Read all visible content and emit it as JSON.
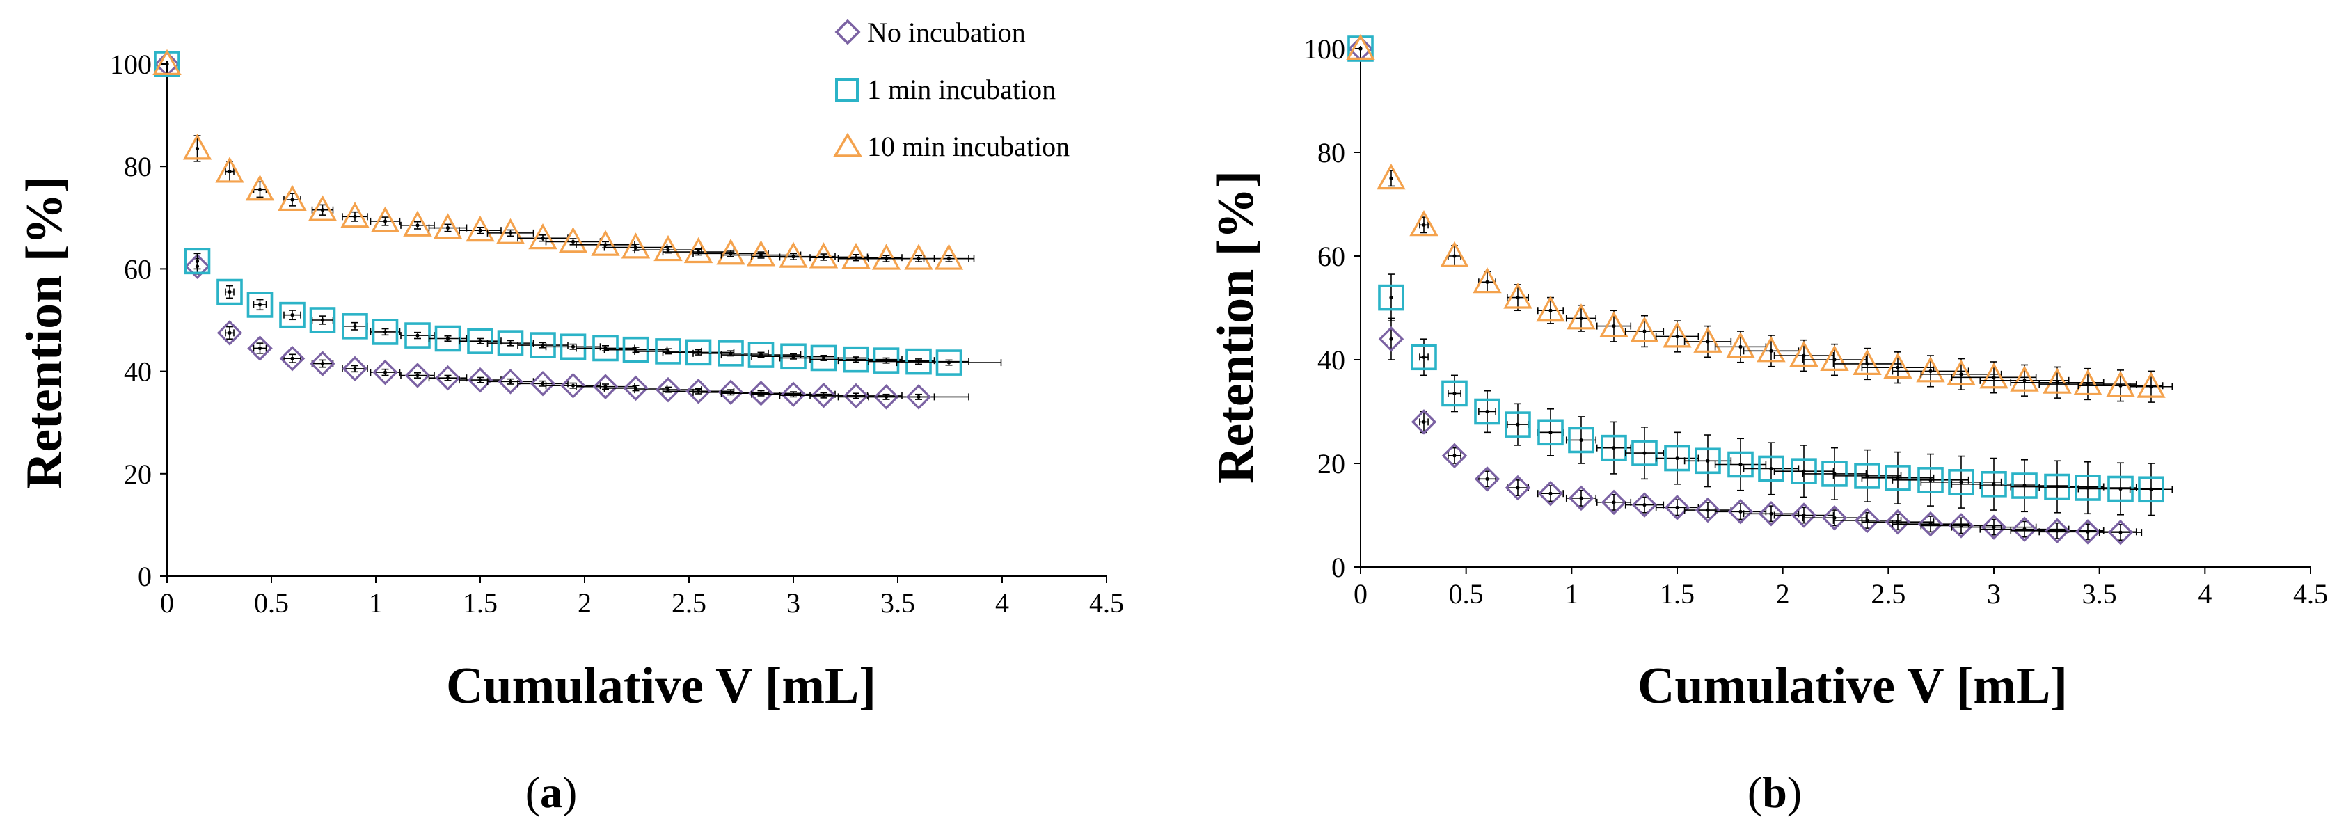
{
  "chart_data": [
    {
      "panel": "a",
      "type": "scatter",
      "title": "",
      "xlabel": "Cumulative V [mL]",
      "ylabel": "Retention [%]",
      "xlim": [
        0,
        4.5
      ],
      "ylim": [
        0,
        100
      ],
      "xticks": [
        "0",
        "0.5",
        "1",
        "1.5",
        "2",
        "2.5",
        "3",
        "3.5",
        "4",
        "4.5"
      ],
      "yticks": [
        "0",
        "20",
        "40",
        "60",
        "80",
        "100"
      ],
      "panel_label": {
        "open": "(",
        "letter": "a",
        "close": ")"
      },
      "legend": {
        "position": "top-right",
        "entries": [
          "No incubation",
          "1 min incubation",
          "10 min incubation"
        ]
      },
      "series": [
        {
          "name": "No incubation",
          "marker": "diamond",
          "color": "#7b62a3",
          "x": [
            0,
            0.145,
            0.3,
            0.445,
            0.6,
            0.745,
            0.9,
            1.045,
            1.2,
            1.345,
            1.5,
            1.645,
            1.8,
            1.945,
            2.1,
            2.245,
            2.4,
            2.545,
            2.7,
            2.845,
            3.0,
            3.145,
            3.3,
            3.445,
            3.6
          ],
          "y": [
            100,
            60.5,
            47.5,
            44.5,
            42.5,
            41.5,
            40.5,
            39.8,
            39.2,
            38.7,
            38.3,
            38.0,
            37.6,
            37.2,
            37.0,
            36.7,
            36.4,
            36.1,
            35.9,
            35.7,
            35.5,
            35.3,
            35.2,
            35.0,
            35.0
          ],
          "yerr": [
            0,
            1.5,
            1.2,
            1.0,
            0.8,
            0.7,
            0.6,
            0.6,
            0.5,
            0.5,
            0.5,
            0.5,
            0.5,
            0.5,
            0.5,
            0.5,
            0.5,
            0.5,
            0.5,
            0.5,
            0.5,
            0.5,
            0.5,
            0.5,
            0.5
          ],
          "xerr": [
            0,
            0,
            0.02,
            0.03,
            0.04,
            0.05,
            0.06,
            0.07,
            0.08,
            0.09,
            0.1,
            0.11,
            0.12,
            0.13,
            0.14,
            0.15,
            0.16,
            0.17,
            0.18,
            0.19,
            0.2,
            0.21,
            0.22,
            0.23,
            0.24
          ]
        },
        {
          "name": "1 min incubation",
          "marker": "square",
          "color": "#2bb3c7",
          "x": [
            0,
            0.145,
            0.3,
            0.445,
            0.6,
            0.745,
            0.9,
            1.045,
            1.2,
            1.345,
            1.5,
            1.645,
            1.8,
            1.945,
            2.1,
            2.245,
            2.4,
            2.545,
            2.7,
            2.845,
            3.0,
            3.145,
            3.3,
            3.445,
            3.6,
            3.745
          ],
          "y": [
            100,
            61.5,
            55.5,
            53.0,
            51.0,
            50.0,
            48.8,
            47.7,
            47.0,
            46.4,
            45.9,
            45.5,
            45.1,
            44.8,
            44.5,
            44.2,
            43.9,
            43.7,
            43.5,
            43.2,
            42.9,
            42.6,
            42.3,
            42.1,
            41.9,
            41.7
          ],
          "yerr": [
            0,
            1.5,
            1.2,
            1.0,
            0.9,
            0.8,
            0.7,
            0.6,
            0.6,
            0.5,
            0.5,
            0.5,
            0.5,
            0.5,
            0.5,
            0.5,
            0.5,
            0.5,
            0.5,
            0.5,
            0.5,
            0.5,
            0.5,
            0.5,
            0.5,
            0.5
          ],
          "xerr": [
            0,
            0,
            0.02,
            0.03,
            0.04,
            0.05,
            0.06,
            0.07,
            0.08,
            0.09,
            0.1,
            0.11,
            0.12,
            0.13,
            0.14,
            0.15,
            0.16,
            0.17,
            0.18,
            0.19,
            0.2,
            0.21,
            0.22,
            0.23,
            0.24,
            0.25
          ]
        },
        {
          "name": "10 min incubation",
          "marker": "triangle",
          "color": "#f4a24d",
          "x": [
            0,
            0.145,
            0.3,
            0.445,
            0.6,
            0.745,
            0.9,
            1.045,
            1.2,
            1.345,
            1.5,
            1.645,
            1.8,
            1.945,
            2.1,
            2.245,
            2.4,
            2.545,
            2.7,
            2.845,
            3.0,
            3.145,
            3.3,
            3.445,
            3.6,
            3.745
          ],
          "y": [
            100,
            83.5,
            79.0,
            75.5,
            73.5,
            71.5,
            70.2,
            69.3,
            68.5,
            68.0,
            67.5,
            67.0,
            66.0,
            65.3,
            64.7,
            64.2,
            63.7,
            63.3,
            63.0,
            62.7,
            62.4,
            62.3,
            62.2,
            62.0,
            62.0,
            62.0
          ],
          "yerr": [
            0,
            2.5,
            2.0,
            1.5,
            1.2,
            1.0,
            0.9,
            0.8,
            0.7,
            0.7,
            0.6,
            0.6,
            0.6,
            0.6,
            0.6,
            0.6,
            0.6,
            0.6,
            0.6,
            0.6,
            0.6,
            0.6,
            0.6,
            0.6,
            0.6,
            0.6
          ],
          "xerr": [
            0,
            0,
            0.02,
            0.03,
            0.04,
            0.05,
            0.06,
            0.07,
            0.08,
            0.09,
            0.1,
            0.11,
            0.12,
            0.13,
            0.14,
            0.15,
            0.16,
            0.17,
            0.18,
            0.19,
            0.2,
            0.21,
            0.22,
            0.23,
            0.24,
            0.12
          ]
        }
      ]
    },
    {
      "panel": "b",
      "type": "scatter",
      "title": "",
      "xlabel": "Cumulative V [mL]",
      "ylabel": "Retention [%]",
      "xlim": [
        0,
        4.5
      ],
      "ylim": [
        0,
        100
      ],
      "xticks": [
        "0",
        "0.5",
        "1",
        "1.5",
        "2",
        "2.5",
        "3",
        "3.5",
        "4",
        "4.5"
      ],
      "yticks": [
        "0",
        "20",
        "40",
        "60",
        "80",
        "100"
      ],
      "panel_label": {
        "open": "(",
        "letter": "b",
        "close": ")"
      },
      "series": [
        {
          "name": "No incubation",
          "marker": "diamond",
          "color": "#7b62a3",
          "x": [
            0,
            0.145,
            0.3,
            0.445,
            0.6,
            0.745,
            0.9,
            1.045,
            1.2,
            1.345,
            1.5,
            1.645,
            1.8,
            1.945,
            2.1,
            2.245,
            2.4,
            2.545,
            2.7,
            2.845,
            3.0,
            3.145,
            3.3,
            3.445,
            3.6
          ],
          "y": [
            100,
            44.0,
            28.0,
            21.5,
            17.0,
            15.3,
            14.2,
            13.3,
            12.5,
            12.0,
            11.5,
            11.0,
            10.7,
            10.3,
            10.0,
            9.5,
            9.0,
            8.7,
            8.3,
            8.0,
            7.7,
            7.3,
            7.0,
            6.8,
            6.7
          ],
          "yerr": [
            0,
            4.0,
            2.0,
            1.5,
            1.5,
            1.5,
            1.5,
            1.5,
            1.5,
            1.5,
            1.5,
            1.5,
            1.5,
            1.5,
            1.5,
            1.5,
            1.5,
            1.5,
            1.5,
            1.5,
            1.5,
            1.5,
            1.5,
            1.5,
            1.5
          ],
          "xerr": [
            0,
            0,
            0.02,
            0.03,
            0.04,
            0.05,
            0.06,
            0.07,
            0.08,
            0.09,
            0.1,
            0.11,
            0.12,
            0.13,
            0.14,
            0.15,
            0.16,
            0.17,
            0.18,
            0.19,
            0.2,
            0.21,
            0.22,
            0.23,
            0.1
          ]
        },
        {
          "name": "1 min incubation",
          "marker": "square",
          "color": "#2bb3c7",
          "x": [
            0,
            0.145,
            0.3,
            0.445,
            0.6,
            0.745,
            0.9,
            1.045,
            1.2,
            1.345,
            1.5,
            1.645,
            1.8,
            1.945,
            2.1,
            2.245,
            2.4,
            2.545,
            2.7,
            2.845,
            3.0,
            3.145,
            3.3,
            3.445,
            3.6,
            3.745
          ],
          "y": [
            100,
            52.0,
            40.5,
            33.5,
            30.0,
            27.5,
            26.0,
            24.5,
            23.0,
            22.0,
            21.0,
            20.5,
            19.8,
            19.0,
            18.5,
            18.0,
            17.6,
            17.2,
            16.8,
            16.4,
            16.0,
            15.7,
            15.5,
            15.3,
            15.1,
            15.0
          ],
          "yerr": [
            0,
            4.5,
            3.5,
            3.5,
            4.0,
            4.0,
            4.5,
            4.5,
            5.0,
            5.0,
            5.0,
            5.0,
            5.0,
            5.0,
            5.0,
            5.0,
            5.0,
            5.0,
            5.0,
            5.0,
            5.0,
            5.0,
            5.0,
            5.0,
            5.0,
            5.0
          ],
          "xerr": [
            0,
            0,
            0.02,
            0.03,
            0.04,
            0.05,
            0.06,
            0.07,
            0.08,
            0.09,
            0.1,
            0.11,
            0.12,
            0.13,
            0.14,
            0.15,
            0.16,
            0.17,
            0.18,
            0.19,
            0.2,
            0.21,
            0.22,
            0.23,
            0.2,
            0.1
          ]
        },
        {
          "name": "10 min incubation",
          "marker": "triangle",
          "color": "#f4a24d",
          "x": [
            0,
            0.145,
            0.3,
            0.445,
            0.6,
            0.745,
            0.9,
            1.045,
            1.2,
            1.345,
            1.5,
            1.645,
            1.8,
            1.945,
            2.1,
            2.245,
            2.4,
            2.545,
            2.7,
            2.845,
            3.0,
            3.145,
            3.3,
            3.445,
            3.6,
            3.745
          ],
          "y": [
            100,
            75.0,
            66.0,
            60.0,
            55.0,
            52.0,
            49.5,
            48.0,
            46.5,
            45.5,
            44.5,
            43.5,
            42.5,
            41.7,
            40.8,
            40.0,
            39.2,
            38.5,
            37.8,
            37.2,
            36.6,
            36.0,
            35.6,
            35.3,
            35.0,
            34.8
          ],
          "yerr": [
            0,
            1.5,
            1.5,
            2.0,
            2.0,
            2.5,
            2.5,
            2.5,
            3.0,
            3.0,
            3.0,
            3.0,
            3.0,
            3.0,
            3.0,
            3.0,
            3.0,
            3.0,
            3.0,
            3.0,
            3.0,
            3.0,
            3.0,
            3.0,
            3.0,
            3.0
          ],
          "xerr": [
            0,
            0,
            0.02,
            0.03,
            0.04,
            0.05,
            0.06,
            0.07,
            0.08,
            0.09,
            0.1,
            0.11,
            0.12,
            0.13,
            0.14,
            0.15,
            0.16,
            0.17,
            0.18,
            0.19,
            0.2,
            0.21,
            0.22,
            0.23,
            0.2,
            0.1
          ]
        }
      ]
    }
  ]
}
